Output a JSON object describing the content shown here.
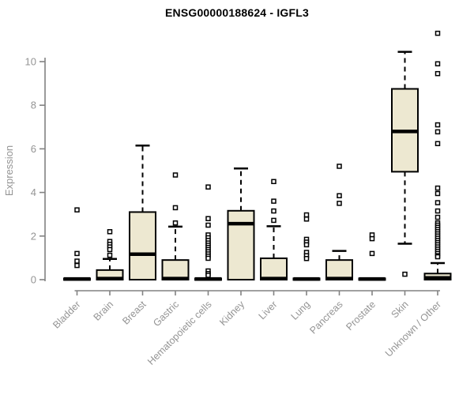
{
  "title": "ENSG00000188624 - IGFL3",
  "colors": {
    "box_fill": "#ede8d1",
    "box_stroke": "#000000",
    "median": "#000000",
    "outlier_fill": "#ffffff",
    "axis_line": "#828282",
    "axis_text": "#949494",
    "title_text": "#000000",
    "background": "#ffffff"
  },
  "chart_data": {
    "type": "boxplot",
    "title": "ENSG00000188624 - IGFL3",
    "xlabel": "",
    "ylabel": "Expression",
    "ylim": [
      0,
      11.4
    ],
    "yticks": [
      0,
      2,
      4,
      6,
      8,
      10
    ],
    "grid": false,
    "legend": "none",
    "categories": [
      "Bladder",
      "Brain",
      "Breast",
      "Gastric",
      "Hematopoietic cells",
      "Kidney",
      "Liver",
      "Lung",
      "Pancreas",
      "Prostate",
      "Skin",
      "Unknown / Other"
    ],
    "boxes": [
      {
        "category": "Bladder",
        "q1": 0,
        "median": 0.03,
        "q3": 0.06,
        "whisker_low": 0,
        "whisker_high": 0.06,
        "outliers": [
          3.2,
          1.2,
          0.85,
          0.65
        ]
      },
      {
        "category": "Brain",
        "q1": 0,
        "median": 0.05,
        "q3": 0.44,
        "whisker_low": 0,
        "whisker_high": 0.95,
        "outliers": [
          2.2,
          1.75,
          1.62,
          1.5,
          1.38,
          1.12
        ]
      },
      {
        "category": "Breast",
        "q1": 0,
        "median": 1.17,
        "q3": 3.1,
        "whisker_low": 0,
        "whisker_high": 6.15,
        "outliers": []
      },
      {
        "category": "Gastric",
        "q1": 0,
        "median": 0.05,
        "q3": 0.9,
        "whisker_low": 0,
        "whisker_high": 2.43,
        "outliers": [
          4.8,
          3.3,
          2.6
        ]
      },
      {
        "category": "Hematopoietic cells",
        "q1": 0,
        "median": 0.03,
        "q3": 0.06,
        "whisker_low": 0,
        "whisker_high": 0.06,
        "outliers": [
          4.25,
          2.8,
          2.5,
          2.05,
          1.92,
          1.8,
          1.68,
          1.58,
          1.48,
          1.38,
          1.28,
          1.18,
          1.08,
          0.98,
          0.4,
          0.28,
          0.2
        ]
      },
      {
        "category": "Kidney",
        "q1": 0,
        "median": 2.57,
        "q3": 3.16,
        "whisker_low": 0,
        "whisker_high": 5.1,
        "outliers": []
      },
      {
        "category": "Liver",
        "q1": 0,
        "median": 0.05,
        "q3": 0.98,
        "whisker_low": 0,
        "whisker_high": 2.45,
        "outliers": [
          4.5,
          3.6,
          3.15,
          2.72
        ]
      },
      {
        "category": "Lung",
        "q1": 0,
        "median": 0.03,
        "q3": 0.06,
        "whisker_low": 0,
        "whisker_high": 0.06,
        "outliers": [
          2.97,
          2.78,
          1.85,
          1.72,
          1.6,
          1.25,
          1.1,
          0.97
        ]
      },
      {
        "category": "Pancreas",
        "q1": 0,
        "median": 0.05,
        "q3": 0.9,
        "whisker_low": 0,
        "whisker_high": 1.32,
        "outliers": [
          5.2,
          3.85,
          3.5
        ]
      },
      {
        "category": "Prostate",
        "q1": 0,
        "median": 0.03,
        "q3": 0.06,
        "whisker_low": 0,
        "whisker_high": 0.06,
        "outliers": [
          2.05,
          1.88,
          1.2
        ]
      },
      {
        "category": "Skin",
        "q1": 4.95,
        "median": 6.8,
        "q3": 8.75,
        "whisker_low": 1.65,
        "whisker_high": 10.45,
        "outliers": [
          0.25
        ]
      },
      {
        "category": "Unknown / Other",
        "q1": 0,
        "median": 0.08,
        "q3": 0.28,
        "whisker_low": 0,
        "whisker_high": 0.76,
        "outliers": [
          11.3,
          9.9,
          9.45,
          7.1,
          6.78,
          6.24,
          4.2,
          3.95,
          3.53,
          3.15,
          2.86,
          2.6,
          2.5,
          2.4,
          2.3,
          2.2,
          2.1,
          2.0,
          1.9,
          1.8,
          1.7,
          1.6,
          1.5,
          1.4,
          1.3,
          1.2,
          1.1,
          1.05
        ]
      }
    ]
  }
}
